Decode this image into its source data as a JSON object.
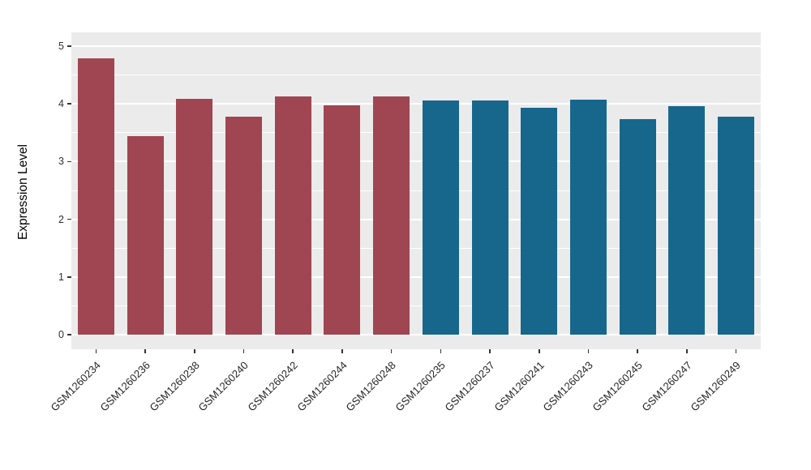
{
  "chart_data": {
    "type": "bar",
    "title": "",
    "xlabel": "",
    "ylabel": "Expression Level",
    "ylim": [
      0,
      5
    ],
    "yticks": [
      0,
      1,
      2,
      3,
      4,
      5
    ],
    "minor_yticks": [
      0.5,
      1.5,
      2.5,
      3.5,
      4.5
    ],
    "grid": true,
    "legend_position": "none",
    "panel_background": "#EBEBEB",
    "grid_color": "#FFFFFF",
    "group_colors": {
      "group1": "#A04552",
      "group2": "#17678D"
    },
    "categories": [
      "GSM1260234",
      "GSM1260236",
      "GSM1260238",
      "GSM1260240",
      "GSM1260242",
      "GSM1260244",
      "GSM1260248",
      "GSM1260235",
      "GSM1260237",
      "GSM1260241",
      "GSM1260243",
      "GSM1260245",
      "GSM1260247",
      "GSM1260249"
    ],
    "bars": [
      {
        "label": "GSM1260234",
        "value": 4.79,
        "color": "#A04552"
      },
      {
        "label": "GSM1260236",
        "value": 3.44,
        "color": "#A04552"
      },
      {
        "label": "GSM1260238",
        "value": 4.09,
        "color": "#A04552"
      },
      {
        "label": "GSM1260240",
        "value": 3.78,
        "color": "#A04552"
      },
      {
        "label": "GSM1260242",
        "value": 4.13,
        "color": "#A04552"
      },
      {
        "label": "GSM1260244",
        "value": 3.97,
        "color": "#A04552"
      },
      {
        "label": "GSM1260248",
        "value": 4.13,
        "color": "#A04552"
      },
      {
        "label": "GSM1260235",
        "value": 4.06,
        "color": "#17678D"
      },
      {
        "label": "GSM1260237",
        "value": 4.06,
        "color": "#17678D"
      },
      {
        "label": "GSM1260241",
        "value": 3.93,
        "color": "#17678D"
      },
      {
        "label": "GSM1260243",
        "value": 4.08,
        "color": "#17678D"
      },
      {
        "label": "GSM1260245",
        "value": 3.74,
        "color": "#17678D"
      },
      {
        "label": "GSM1260247",
        "value": 3.96,
        "color": "#17678D"
      },
      {
        "label": "GSM1260249",
        "value": 3.78,
        "color": "#17678D"
      }
    ]
  }
}
